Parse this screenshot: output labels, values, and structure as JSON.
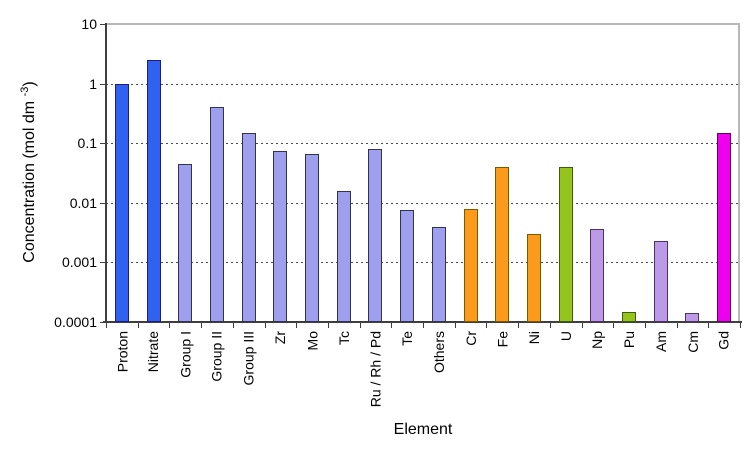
{
  "chart_data": {
    "type": "bar",
    "title": "",
    "xlabel": "Element",
    "ylabel": "Concentration (mol dm -3)",
    "ylabel_parts": {
      "prefix": "Concentration (mol dm ",
      "superscript": "-3",
      "suffix": ")"
    },
    "y_scale": "log",
    "ylim": [
      0.0001,
      10
    ],
    "y_tick_labels": [
      "10",
      "1",
      "0.1",
      "0.01",
      "0.001",
      "0.0001"
    ],
    "y_tick_values": [
      10,
      1,
      0.1,
      0.01,
      0.001,
      0.0001
    ],
    "grid": "horizontal dashed lines at 1, 0.1, 0.01, 0.001",
    "gridline_values": [
      1,
      0.1,
      0.01,
      0.001
    ],
    "legend": "none",
    "categories": [
      "Proton",
      "Nitrate",
      "Group I",
      "Group II",
      "Group III",
      "Zr",
      "Mo",
      "Tc",
      "Ru / Rh / Pd",
      "Te",
      "Others",
      "Cr",
      "Fe",
      "Ni",
      "U",
      "Np",
      "Pu",
      "Am",
      "Cm",
      "Gd"
    ],
    "values": [
      1.0,
      2.5,
      0.045,
      0.4,
      0.15,
      0.075,
      0.065,
      0.016,
      0.08,
      0.0075,
      0.004,
      0.008,
      0.04,
      0.003,
      0.04,
      0.0037,
      0.00015,
      0.0023,
      0.00014,
      0.15
    ],
    "bar_color_keys": [
      "blue",
      "blue",
      "periwinkle",
      "periwinkle",
      "periwinkle",
      "periwinkle",
      "periwinkle",
      "periwinkle",
      "periwinkle",
      "periwinkle",
      "periwinkle",
      "orange",
      "orange",
      "orange",
      "green",
      "lilac",
      "green",
      "lilac",
      "lilac",
      "magenta"
    ],
    "palette": {
      "blue": {
        "fill": "#3061f0",
        "border": "#1f1f7a"
      },
      "periwinkle": {
        "fill": "#9f9ff0",
        "border": "#33334d"
      },
      "orange": {
        "fill": "#fb9a1b",
        "border": "#7a5a00"
      },
      "green": {
        "fill": "#95c51d",
        "border": "#3d5c0f"
      },
      "lilac": {
        "fill": "#bd9ae8",
        "border": "#4d3366"
      },
      "magenta": {
        "fill": "#ee00ee",
        "border": "#660066"
      }
    },
    "style": {
      "axis_color": "#3f3f3f",
      "grid_color": "#4d4d4d",
      "plot_border_color": "#b8b8b8",
      "background": "#ffffff"
    }
  }
}
